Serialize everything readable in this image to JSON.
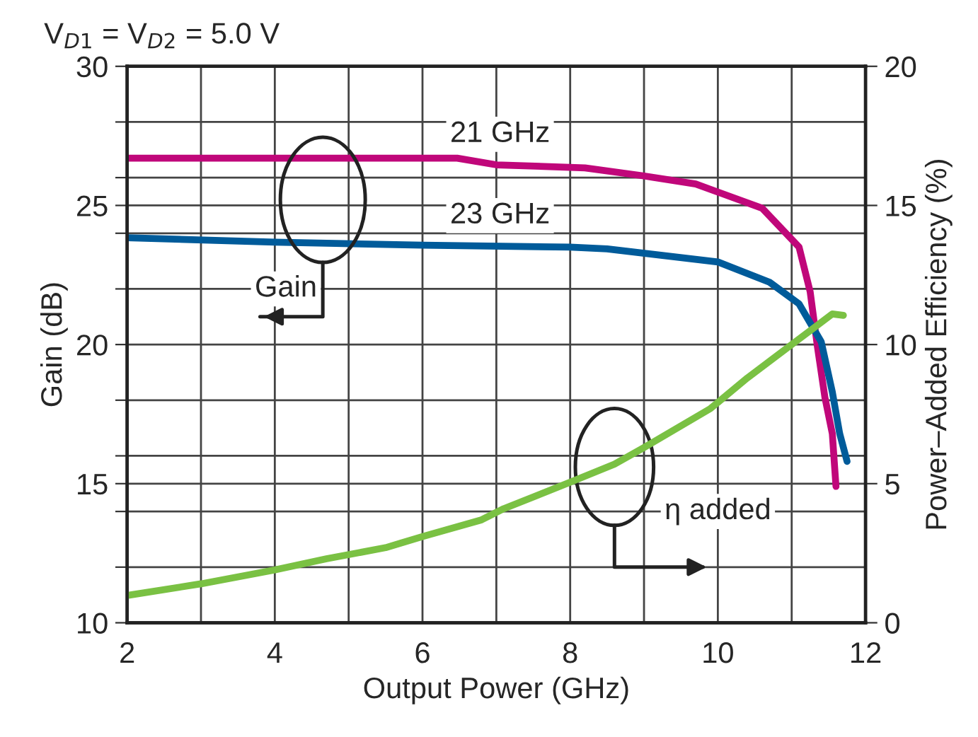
{
  "chart_data": {
    "type": "line",
    "title": "V$_{D1}$ = V$_{D2}$ = 5.0 V",
    "xlabel": "Output Power (GHz)",
    "ylabel": "Gain (dB)",
    "y2label": "Power–Added Efficiency (%)",
    "xlim": [
      2,
      12
    ],
    "xticks": [
      2,
      {
        "value": 3,
        "label": null
      },
      4,
      {
        "value": 5,
        "label": null
      },
      6,
      {
        "value": 7,
        "label": null
      },
      8,
      {
        "value": 9,
        "label": null
      },
      10,
      {
        "value": 11,
        "label": null
      },
      12
    ],
    "ylim": [
      10,
      30
    ],
    "yticks": [
      10,
      {
        "value": 12,
        "label": null
      },
      {
        "value": 14,
        "label": null
      },
      15,
      {
        "value": 16,
        "label": null
      },
      {
        "value": 18,
        "label": null
      },
      20,
      {
        "value": 22,
        "label": null
      },
      {
        "value": 24,
        "label": null
      },
      25,
      {
        "value": 26,
        "label": null
      },
      {
        "value": 28,
        "label": null
      },
      30
    ],
    "y2lim": [
      0,
      20
    ],
    "y2ticks": [
      0,
      5,
      10,
      15,
      20
    ],
    "grid": true,
    "legend": false,
    "series": [
      {
        "name": "21 GHz",
        "color": "#c0077a",
        "x": [
          2,
          6.47,
          7.0,
          8.2,
          9.0,
          9.7,
          10.6,
          11.1,
          11.25,
          11.35,
          11.45,
          11.55,
          11.6
        ],
        "values": [
          26.7,
          26.7,
          26.46,
          26.35,
          26.06,
          25.77,
          24.9,
          23.5,
          21.9,
          19.9,
          18.1,
          16.8,
          14.9
        ]
      },
      {
        "name": "23 GHz",
        "color": "#005b9a",
        "x": [
          2,
          4,
          6,
          8,
          8.5,
          10,
          10.7,
          11.1,
          11.4,
          11.55,
          11.65,
          11.75
        ],
        "values": [
          23.84,
          23.68,
          23.57,
          23.5,
          23.44,
          22.97,
          22.24,
          21.46,
          20.1,
          18.3,
          16.8,
          15.8
        ]
      },
      {
        "color": "#7ac143",
        "axis": "y2",
        "x": [
          2,
          3,
          4,
          4.7,
          5.5,
          6,
          6.8,
          7.1,
          8,
          8.6,
          9,
          9.9,
          10.4,
          11,
          11.3,
          11.55,
          11.7
        ],
        "values": [
          0.98,
          1.4,
          1.9,
          2.3,
          2.7,
          3.1,
          3.7,
          4.1,
          5.05,
          5.7,
          6.3,
          7.7,
          8.8,
          10.0,
          10.6,
          11.1,
          11.05
        ]
      }
    ],
    "annotations": [
      "Gain",
      "η added"
    ]
  }
}
